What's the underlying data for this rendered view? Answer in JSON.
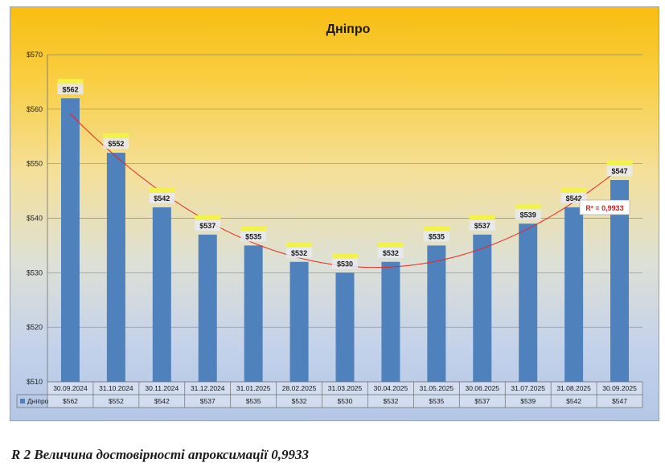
{
  "chart_data": {
    "type": "bar",
    "title": "Дніпро",
    "categories": [
      "30.09.2024",
      "31.10.2024",
      "30.11.2024",
      "31.12.2024",
      "31.01.2025",
      "28.02.2025",
      "31.03.2025",
      "30.04.2025",
      "31.05.2025",
      "30.06.2025",
      "31.07.2025",
      "31.08.2025",
      "30.09.2025"
    ],
    "series": [
      {
        "name": "Дніпро",
        "values": [
          562,
          552,
          542,
          537,
          535,
          532,
          530,
          532,
          535,
          537,
          539,
          542,
          547
        ],
        "color": "#4f81bd"
      }
    ],
    "data_labels": [
      "$562",
      "$552",
      "$542",
      "$537",
      "$535",
      "$532",
      "$530",
      "$532",
      "$535",
      "$537",
      "$539",
      "$542",
      "$547"
    ],
    "y_ticks": [
      510,
      520,
      530,
      540,
      550,
      560,
      570
    ],
    "y_tick_labels": [
      "$510",
      "$520",
      "$530",
      "$540",
      "$550",
      "$560",
      "$570"
    ],
    "ylim": [
      510,
      570
    ],
    "grid": true,
    "legend": "data table",
    "trendline": {
      "type": "polynomial",
      "color": "#e8271f",
      "label": "R² = 0,9933"
    },
    "data_table": true
  },
  "caption": "R 2 Величина достовірності апроксимації 0,9933"
}
